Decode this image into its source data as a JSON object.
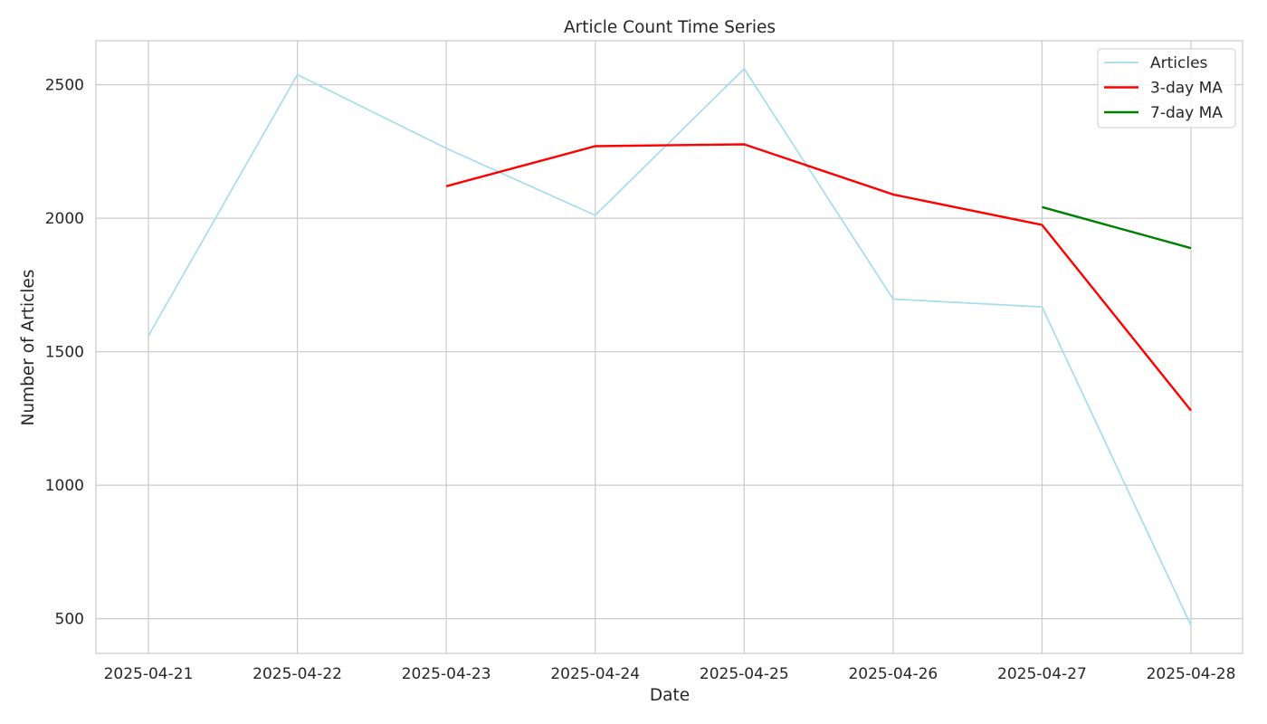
{
  "chart_data": {
    "type": "line",
    "title": "Article Count Time Series",
    "xlabel": "Date",
    "ylabel": "Number of Articles",
    "x": [
      "2025-04-21",
      "2025-04-22",
      "2025-04-23",
      "2025-04-24",
      "2025-04-25",
      "2025-04-26",
      "2025-04-27",
      "2025-04-28"
    ],
    "yticks": [
      500,
      1000,
      1500,
      2000,
      2500
    ],
    "ylim": [
      370,
      2665
    ],
    "grid": true,
    "legend_position": "top-right",
    "series": [
      {
        "name": "Articles",
        "color": "#a6dcef",
        "values": [
          1560,
          2538,
          2262,
          2011,
          2560,
          1697,
          1668,
          475
        ]
      },
      {
        "name": "3-day MA",
        "color": "#ff0000",
        "values": [
          null,
          null,
          2120,
          2270,
          2277,
          2089,
          1975,
          1280
        ]
      },
      {
        "name": "7-day MA",
        "color": "#008000",
        "values": [
          null,
          null,
          null,
          null,
          null,
          null,
          2042,
          1888
        ]
      }
    ]
  }
}
